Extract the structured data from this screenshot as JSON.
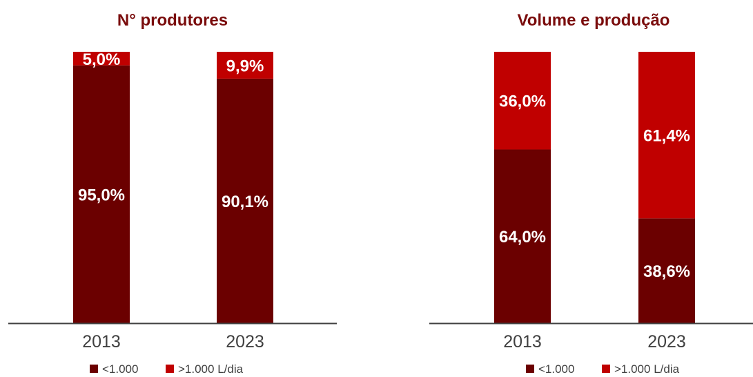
{
  "colors": {
    "title": "#7a0c0c",
    "series_dark": "#6b0000",
    "series_bright": "#c00000",
    "axis": "#404040"
  },
  "chart_data": [
    {
      "type": "bar",
      "stacked": true,
      "title": "N° produtores",
      "categories": [
        "2013",
        "2023"
      ],
      "series": [
        {
          "name": "<1.000",
          "values": [
            95.0,
            90.1
          ],
          "labels": [
            "95,0%",
            "90,1%"
          ]
        },
        {
          "name": ">1.000 L/dia",
          "values": [
            5.0,
            9.9
          ],
          "labels": [
            "5,0%",
            "9,9%"
          ]
        }
      ],
      "ylim": [
        0,
        100
      ],
      "grid": false,
      "legend_position": "bottom"
    },
    {
      "type": "bar",
      "stacked": true,
      "title": "Volume e produção",
      "categories": [
        "2013",
        "2023"
      ],
      "series": [
        {
          "name": "<1.000",
          "values": [
            64.0,
            38.6
          ],
          "labels": [
            "64,0%",
            "38,6%"
          ]
        },
        {
          "name": ">1.000 L/dia",
          "values": [
            36.0,
            61.4
          ],
          "labels": [
            "36,0%",
            "61,4%"
          ]
        }
      ],
      "ylim": [
        0,
        100
      ],
      "grid": false,
      "legend_position": "bottom"
    }
  ]
}
